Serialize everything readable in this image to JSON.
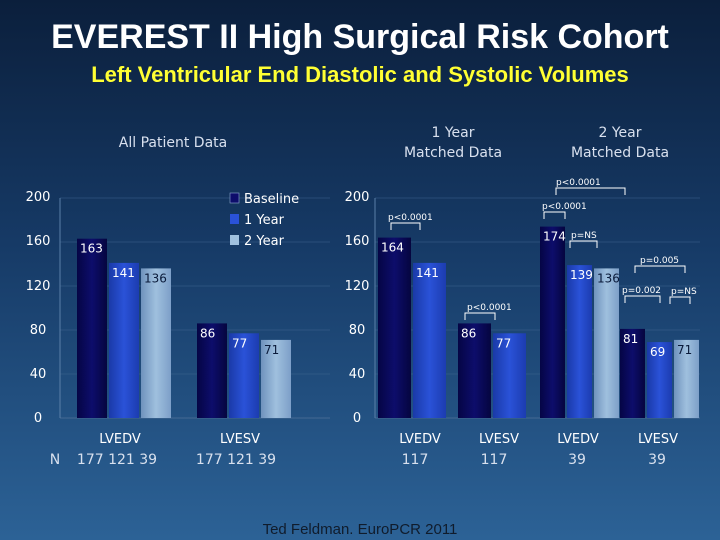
{
  "title": "EVEREST II High Surgical Risk Cohort",
  "subtitle": "Left Ventricular End Diastolic and Systolic Volumes",
  "headers": {
    "all": "All Patient Data",
    "year1": [
      "1 Year",
      "Matched Data"
    ],
    "year2": [
      "2 Year",
      "Matched Data"
    ]
  },
  "credit": "Ted Feldman. EuroPCR 2011",
  "colors": {
    "baseline": "#0d0d6b",
    "year1": "#2a52d8",
    "year2": "#9fc0de"
  },
  "chart_data": [
    {
      "type": "bar",
      "name": "All Patient Data",
      "ylim": [
        0,
        200
      ],
      "yticks": [
        0,
        40,
        80,
        120,
        160,
        200
      ],
      "categories": [
        "LVEDV",
        "LVESV"
      ],
      "series": [
        {
          "name": "Baseline",
          "values": [
            163,
            86
          ]
        },
        {
          "name": "1 Year",
          "values": [
            141,
            77
          ]
        },
        {
          "name": "2 Year",
          "values": [
            136,
            71
          ]
        }
      ],
      "value_labels": [
        [
          "163",
          "141",
          "136"
        ],
        [
          "86",
          "77",
          "71"
        ]
      ],
      "n_label": "N",
      "n": [
        "177 121 39",
        "177 121 39"
      ]
    },
    {
      "type": "bar",
      "name": "1 Year Matched Data",
      "ylim": [
        0,
        200
      ],
      "yticks": [
        0,
        40,
        80,
        120,
        160,
        200
      ],
      "categories": [
        "LVEDV",
        "LVESV"
      ],
      "series": [
        {
          "name": "Baseline",
          "values": [
            164,
            86
          ]
        },
        {
          "name": "1 Year",
          "values": [
            141,
            77
          ]
        }
      ],
      "value_labels": [
        [
          "164",
          "141"
        ],
        [
          "86",
          "77"
        ]
      ],
      "n": [
        "117",
        "117"
      ],
      "annotations": [
        "p<0.0001",
        "p<0.0001"
      ]
    },
    {
      "type": "bar",
      "name": "2 Year Matched Data",
      "ylim": [
        0,
        200
      ],
      "categories": [
        "LVEDV",
        "LVESV"
      ],
      "series": [
        {
          "name": "Baseline",
          "values": [
            174,
            81
          ]
        },
        {
          "name": "1 Year",
          "values": [
            139,
            69
          ]
        },
        {
          "name": "2 Year",
          "values": [
            136,
            71
          ]
        }
      ],
      "value_labels": [
        [
          "174",
          "139",
          "136"
        ],
        [
          "81",
          "69",
          "71"
        ]
      ],
      "n": [
        "39",
        "39"
      ],
      "annotations": [
        "p<0.0001",
        "p<0.0001",
        "p=NS",
        "p=0.005",
        "p=0.002",
        "p=NS"
      ]
    }
  ]
}
